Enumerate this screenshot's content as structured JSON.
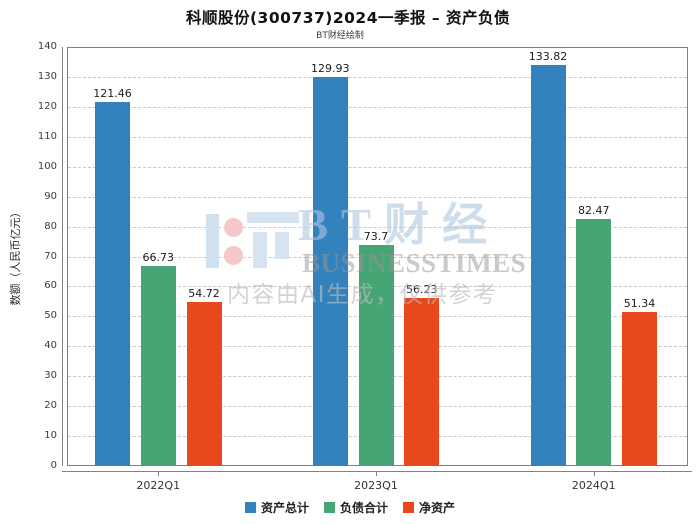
{
  "chart_data": {
    "type": "bar",
    "title": "科顺股份(300737)2024一季报 – 资产负债",
    "subtitle": "BT财经绘制",
    "categories": [
      "2022Q1",
      "2023Q1",
      "2024Q1"
    ],
    "series": [
      {
        "key": "total-assets",
        "name": "资产总计",
        "color": "#3381bd",
        "values": [
          121.46,
          129.93,
          133.82
        ]
      },
      {
        "key": "total-liabilities",
        "name": "负债合计",
        "color": "#47a474",
        "values": [
          66.73,
          73.7,
          82.47
        ]
      },
      {
        "key": "net-assets",
        "name": "净资产",
        "color": "#e9481d",
        "values": [
          54.72,
          56.23,
          51.34
        ]
      }
    ],
    "xlabel": "",
    "ylabel": "数额（人民币亿元）",
    "ylim": [
      0,
      140
    ],
    "ytick_step": 10,
    "grid": true,
    "legend_position": "bottom"
  },
  "watermark": {
    "logo_text": "BT财经",
    "brand_caption": "BUSINESSTIMES",
    "disclaimer": "内容由AI生成，仅供参考"
  }
}
